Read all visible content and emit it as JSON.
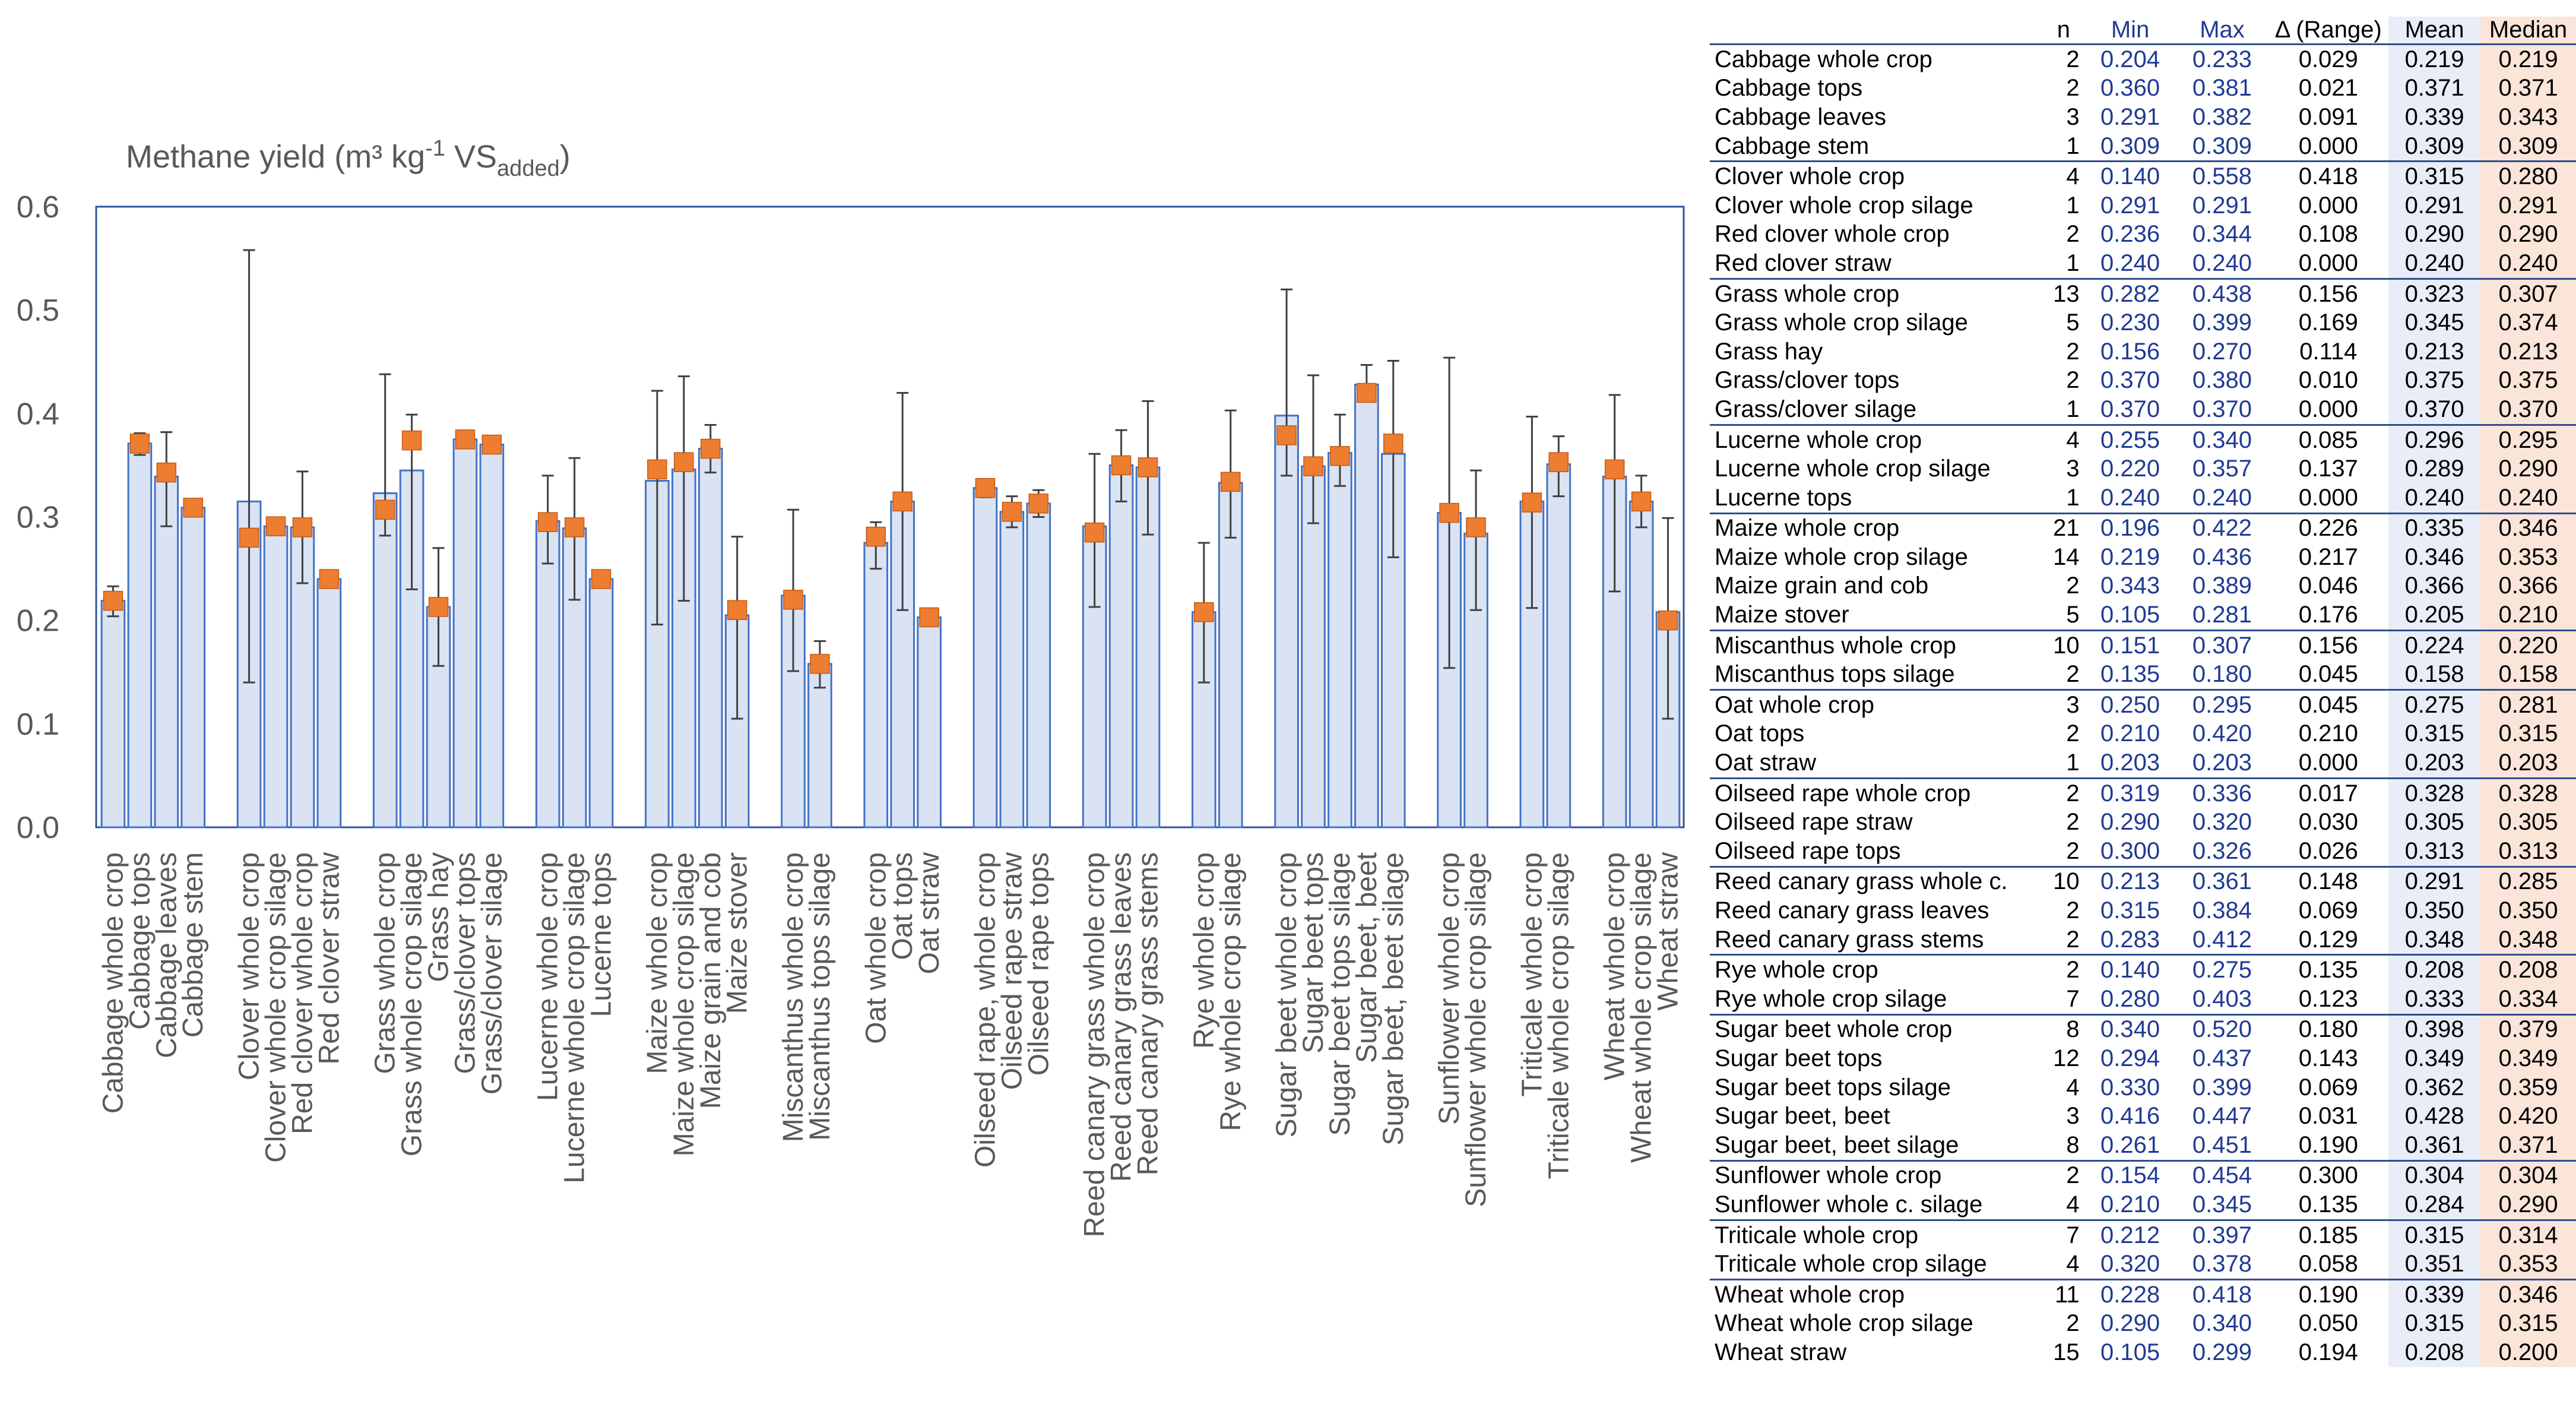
{
  "chart_data": {
    "type": "bar",
    "title": "Methane yield (m³ kg⁻¹ VS_added)",
    "title_parts": {
      "main": "Methane yield (m³ kg",
      "sup": "-1",
      "mid": " VS",
      "sub": "added",
      "end": ")"
    },
    "ylim": [
      0,
      0.6
    ],
    "yticks": [
      "0.0",
      "0.1",
      "0.2",
      "0.3",
      "0.4",
      "0.5",
      "0.6"
    ],
    "ytick_values": [
      0,
      0.1,
      0.2,
      0.3,
      0.4,
      0.5,
      0.6
    ],
    "series": [
      {
        "name": "Mean",
        "marker": "bar",
        "color": "#dae3f3"
      },
      {
        "name": "Median",
        "marker": "square",
        "color": "#ed7d31"
      },
      {
        "name": "Min–Max range",
        "marker": "error-bar",
        "color": "#404040"
      }
    ],
    "columns": {
      "n": "n",
      "min": "Min",
      "max": "Max",
      "range": "Δ (Range)",
      "mean": "Mean",
      "median": "Median"
    },
    "groups": [
      {
        "items": [
          {
            "name": "Cabbage whole crop",
            "label": "Cabbage whole crop",
            "n": "2",
            "min": "0.204",
            "max": "0.233",
            "range": "0.029",
            "mean": "0.219",
            "median": "0.219"
          },
          {
            "name": "Cabbage tops",
            "label": "Cabbage tops",
            "n": "2",
            "min": "0.360",
            "max": "0.381",
            "range": "0.021",
            "mean": "0.371",
            "median": "0.371"
          },
          {
            "name": "Cabbage leaves",
            "label": "Cabbage leaves",
            "n": "3",
            "min": "0.291",
            "max": "0.382",
            "range": "0.091",
            "mean": "0.339",
            "median": "0.343"
          },
          {
            "name": "Cabbage stem",
            "label": "Cabbage stem",
            "n": "1",
            "min": "0.309",
            "max": "0.309",
            "range": "0.000",
            "mean": "0.309",
            "median": "0.309"
          }
        ]
      },
      {
        "items": [
          {
            "name": "Clover whole crop",
            "label": "Clover whole crop",
            "n": "4",
            "min": "0.140",
            "max": "0.558",
            "range": "0.418",
            "mean": "0.315",
            "median": "0.280"
          },
          {
            "name": "Clover whole crop silage",
            "label": "Clover whole crop silage",
            "n": "1",
            "min": "0.291",
            "max": "0.291",
            "range": "0.000",
            "mean": "0.291",
            "median": "0.291"
          },
          {
            "name": "Red clover whole crop",
            "label": "Red clover whole crop",
            "n": "2",
            "min": "0.236",
            "max": "0.344",
            "range": "0.108",
            "mean": "0.290",
            "median": "0.290"
          },
          {
            "name": "Red clover straw",
            "label": "Red clover straw",
            "n": "1",
            "min": "0.240",
            "max": "0.240",
            "range": "0.000",
            "mean": "0.240",
            "median": "0.240"
          }
        ]
      },
      {
        "items": [
          {
            "name": "Grass whole crop",
            "label": "Grass whole crop",
            "n": "13",
            "min": "0.282",
            "max": "0.438",
            "range": "0.156",
            "mean": "0.323",
            "median": "0.307"
          },
          {
            "name": "Grass whole crop silage",
            "label": "Grass whole crop silage",
            "n": "5",
            "min": "0.230",
            "max": "0.399",
            "range": "0.169",
            "mean": "0.345",
            "median": "0.374"
          },
          {
            "name": "Grass hay",
            "label": "Grass hay",
            "n": "2",
            "min": "0.156",
            "max": "0.270",
            "range": "0.114",
            "mean": "0.213",
            "median": "0.213"
          },
          {
            "name": "Grass/clover tops",
            "label": "Grass/clover tops",
            "n": "2",
            "min": "0.370",
            "max": "0.380",
            "range": "0.010",
            "mean": "0.375",
            "median": "0.375"
          },
          {
            "name": "Grass/clover silage",
            "label": "Grass/clover silage",
            "n": "1",
            "min": "0.370",
            "max": "0.370",
            "range": "0.000",
            "mean": "0.370",
            "median": "0.370"
          }
        ]
      },
      {
        "items": [
          {
            "name": "Lucerne whole crop",
            "label": "Lucerne whole crop",
            "n": "4",
            "min": "0.255",
            "max": "0.340",
            "range": "0.085",
            "mean": "0.296",
            "median": "0.295"
          },
          {
            "name": "Lucerne whole crop silage",
            "label": "Lucerne whole crop silage",
            "n": "3",
            "min": "0.220",
            "max": "0.357",
            "range": "0.137",
            "mean": "0.289",
            "median": "0.290"
          },
          {
            "name": "Lucerne tops",
            "label": "Lucerne tops",
            "n": "1",
            "min": "0.240",
            "max": "0.240",
            "range": "0.000",
            "mean": "0.240",
            "median": "0.240"
          }
        ]
      },
      {
        "items": [
          {
            "name": "Maize whole crop",
            "label": "Maize whole crop",
            "n": "21",
            "min": "0.196",
            "max": "0.422",
            "range": "0.226",
            "mean": "0.335",
            "median": "0.346"
          },
          {
            "name": "Maize whole crop silage",
            "label": "Maize whole crop silage",
            "n": "14",
            "min": "0.219",
            "max": "0.436",
            "range": "0.217",
            "mean": "0.346",
            "median": "0.353"
          },
          {
            "name": "Maize grain and cob",
            "label": "Maize grain and cob",
            "n": "2",
            "min": "0.343",
            "max": "0.389",
            "range": "0.046",
            "mean": "0.366",
            "median": "0.366"
          },
          {
            "name": "Maize stover",
            "label": "Maize stover",
            "n": "5",
            "min": "0.105",
            "max": "0.281",
            "range": "0.176",
            "mean": "0.205",
            "median": "0.210"
          }
        ]
      },
      {
        "items": [
          {
            "name": "Miscanthus whole crop",
            "label": "Miscanthus whole crop",
            "n": "10",
            "min": "0.151",
            "max": "0.307",
            "range": "0.156",
            "mean": "0.224",
            "median": "0.220"
          },
          {
            "name": "Miscanthus tops silage",
            "label": "Miscanthus tops silage",
            "n": "2",
            "min": "0.135",
            "max": "0.180",
            "range": "0.045",
            "mean": "0.158",
            "median": "0.158"
          }
        ]
      },
      {
        "items": [
          {
            "name": "Oat whole crop",
            "label": "Oat whole crop",
            "n": "3",
            "min": "0.250",
            "max": "0.295",
            "range": "0.045",
            "mean": "0.275",
            "median": "0.281"
          },
          {
            "name": "Oat tops",
            "label": "Oat tops",
            "n": "2",
            "min": "0.210",
            "max": "0.420",
            "range": "0.210",
            "mean": "0.315",
            "median": "0.315"
          },
          {
            "name": "Oat straw",
            "label": "Oat straw",
            "n": "1",
            "min": "0.203",
            "max": "0.203",
            "range": "0.000",
            "mean": "0.203",
            "median": "0.203"
          }
        ]
      },
      {
        "items": [
          {
            "name": "Oilseed rape whole crop",
            "label": "Oilseed rape, whole crop",
            "n": "2",
            "min": "0.319",
            "max": "0.336",
            "range": "0.017",
            "mean": "0.328",
            "median": "0.328"
          },
          {
            "name": "Oilseed rape straw",
            "label": "Oilseed rape straw",
            "n": "2",
            "min": "0.290",
            "max": "0.320",
            "range": "0.030",
            "mean": "0.305",
            "median": "0.305"
          },
          {
            "name": "Oilseed rape tops",
            "label": "Oilseed rape tops",
            "n": "2",
            "min": "0.300",
            "max": "0.326",
            "range": "0.026",
            "mean": "0.313",
            "median": "0.313"
          }
        ]
      },
      {
        "items": [
          {
            "name": "Reed canary grass whole c.",
            "label": "Reed canary grass whole crop",
            "n": "10",
            "min": "0.213",
            "max": "0.361",
            "range": "0.148",
            "mean": "0.291",
            "median": "0.285"
          },
          {
            "name": "Reed canary grass leaves",
            "label": "Reed canary grass leaves",
            "n": "2",
            "min": "0.315",
            "max": "0.384",
            "range": "0.069",
            "mean": "0.350",
            "median": "0.350"
          },
          {
            "name": "Reed canary grass stems",
            "label": "Reed canary grass stems",
            "n": "2",
            "min": "0.283",
            "max": "0.412",
            "range": "0.129",
            "mean": "0.348",
            "median": "0.348"
          }
        ]
      },
      {
        "items": [
          {
            "name": "Rye whole crop",
            "label": "Rye whole crop",
            "n": "2",
            "min": "0.140",
            "max": "0.275",
            "range": "0.135",
            "mean": "0.208",
            "median": "0.208"
          },
          {
            "name": "Rye whole crop silage",
            "label": "Rye whole crop silage",
            "n": "7",
            "min": "0.280",
            "max": "0.403",
            "range": "0.123",
            "mean": "0.333",
            "median": "0.334"
          }
        ]
      },
      {
        "items": [
          {
            "name": "Sugar beet whole crop",
            "label": "Sugar beet whole crop",
            "n": "8",
            "min": "0.340",
            "max": "0.520",
            "range": "0.180",
            "mean": "0.398",
            "median": "0.379"
          },
          {
            "name": "Sugar beet tops",
            "label": "Sugar beet tops",
            "n": "12",
            "min": "0.294",
            "max": "0.437",
            "range": "0.143",
            "mean": "0.349",
            "median": "0.349"
          },
          {
            "name": "Sugar beet tops silage",
            "label": "Sugar beet tops silage",
            "n": "4",
            "min": "0.330",
            "max": "0.399",
            "range": "0.069",
            "mean": "0.362",
            "median": "0.359"
          },
          {
            "name": "Sugar beet, beet",
            "label": "Sugar beet, beet",
            "n": "3",
            "min": "0.416",
            "max": "0.447",
            "range": "0.031",
            "mean": "0.428",
            "median": "0.420"
          },
          {
            "name": "Sugar beet, beet silage",
            "label": "Sugar beet, beet silage",
            "n": "8",
            "min": "0.261",
            "max": "0.451",
            "range": "0.190",
            "mean": "0.361",
            "median": "0.371"
          }
        ]
      },
      {
        "items": [
          {
            "name": "Sunflower whole crop",
            "label": "Sunflower whole crop",
            "n": "2",
            "min": "0.154",
            "max": "0.454",
            "range": "0.300",
            "mean": "0.304",
            "median": "0.304"
          },
          {
            "name": "Sunflower whole c. silage",
            "label": "Sunflower whole crop silage",
            "n": "4",
            "min": "0.210",
            "max": "0.345",
            "range": "0.135",
            "mean": "0.284",
            "median": "0.290"
          }
        ]
      },
      {
        "items": [
          {
            "name": "Triticale whole crop",
            "label": "Triticale whole crop",
            "n": "7",
            "min": "0.212",
            "max": "0.397",
            "range": "0.185",
            "mean": "0.315",
            "median": "0.314"
          },
          {
            "name": "Triticale whole crop silage",
            "label": "Triticale whole crop silage",
            "n": "4",
            "min": "0.320",
            "max": "0.378",
            "range": "0.058",
            "mean": "0.351",
            "median": "0.353"
          }
        ]
      },
      {
        "items": [
          {
            "name": "Wheat whole crop",
            "label": "Wheat whole crop",
            "n": "11",
            "min": "0.228",
            "max": "0.418",
            "range": "0.190",
            "mean": "0.339",
            "median": "0.346"
          },
          {
            "name": "Wheat whole crop silage",
            "label": "Wheat whole crop silage",
            "n": "2",
            "min": "0.290",
            "max": "0.340",
            "range": "0.050",
            "mean": "0.315",
            "median": "0.315"
          },
          {
            "name": "Wheat straw",
            "label": "Wheat straw",
            "n": "15",
            "min": "0.105",
            "max": "0.299",
            "range": "0.194",
            "mean": "0.208",
            "median": "0.200"
          }
        ]
      }
    ]
  },
  "colors": {
    "bar_fill": "#dae3f3",
    "bar_stroke": "#4472c4",
    "median_marker": "#ed7d31",
    "error_bar": "#404040",
    "plot_border": "#2f5597",
    "axis_text": "#595959",
    "minmax_text": "#1f3a93",
    "mean_column_bg": "#e8edf8",
    "median_column_bg": "#fbe5d9",
    "group_separator": "#2e4e8c"
  }
}
